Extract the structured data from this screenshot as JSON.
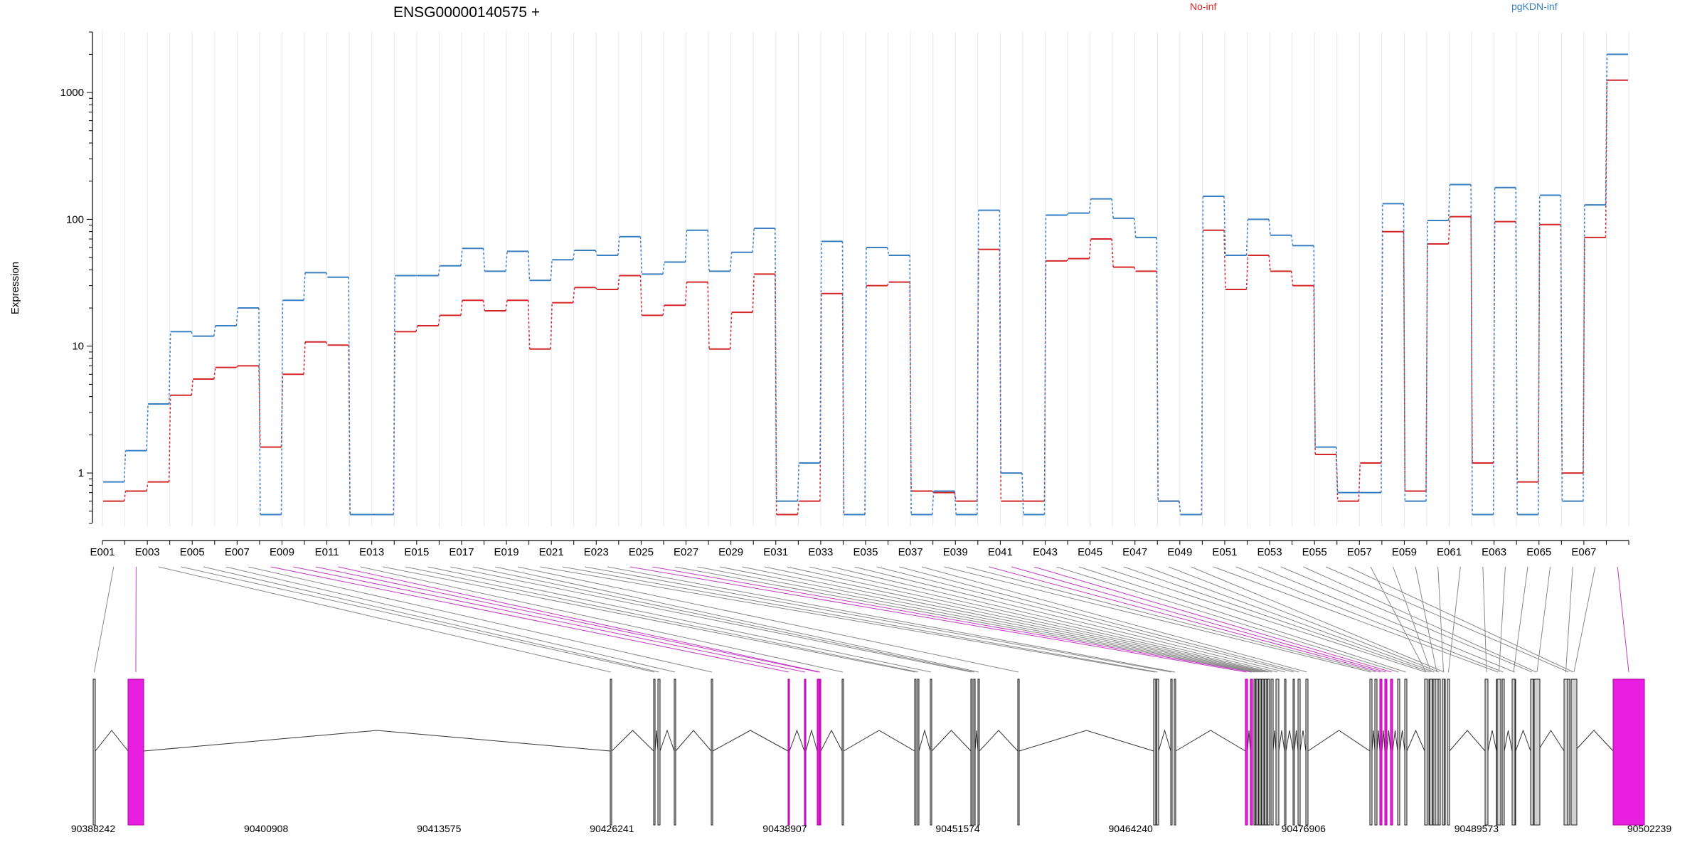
{
  "chart_data": {
    "type": "line",
    "title": "ENSG00000140575 +",
    "xlabel": "",
    "ylabel": "Expression",
    "y_scale": "log",
    "ylim": [
      0.38,
      3000
    ],
    "y_ticks": [
      {
        "value": 1,
        "label": "1"
      },
      {
        "value": 10,
        "label": "10"
      },
      {
        "value": 100,
        "label": "100"
      },
      {
        "value": 1000,
        "label": "1000"
      }
    ],
    "grid": "vertical-only",
    "legend_placement": "top",
    "colors": {
      "No-inf": "#d62728",
      "pgKDN-inf": "#3a7fc1",
      "highlight": "#e81ee0",
      "exon_fill": "#d0d0d0"
    },
    "categories": [
      "E001",
      "E002",
      "E003",
      "E004",
      "E005",
      "E006",
      "E007",
      "E008",
      "E009",
      "E010",
      "E011",
      "E012",
      "E013",
      "E014",
      "E015",
      "E016",
      "E017",
      "E018",
      "E019",
      "E020",
      "E021",
      "E022",
      "E023",
      "E024",
      "E025",
      "E026",
      "E027",
      "E028",
      "E029",
      "E030",
      "E031",
      "E032",
      "E033",
      "E034",
      "E035",
      "E036",
      "E037",
      "E038",
      "E039",
      "E040",
      "E041",
      "E042",
      "E043",
      "E044",
      "E045",
      "E046",
      "E047",
      "E048",
      "E049",
      "E050",
      "E051",
      "E052",
      "E053",
      "E054",
      "E055",
      "E056",
      "E057",
      "E058",
      "E059",
      "E060",
      "E061",
      "E062",
      "E063",
      "E064",
      "E065",
      "E066",
      "E067",
      "E068"
    ],
    "series": [
      {
        "name": "No-inf",
        "color": "#d62728",
        "values": [
          0.6,
          0.72,
          0.85,
          4.1,
          5.5,
          6.8,
          7.0,
          1.6,
          6.0,
          10.8,
          10.2,
          0.47,
          0.47,
          13.0,
          14.5,
          17.5,
          23,
          19,
          23,
          9.5,
          22,
          29,
          28,
          36,
          17.5,
          21,
          32,
          9.5,
          18.5,
          37,
          0.47,
          0.6,
          26,
          0.47,
          30,
          32,
          0.72,
          0.7,
          0.6,
          58,
          0.6,
          0.6,
          47,
          49,
          70,
          42,
          39,
          0.6,
          0.47,
          82,
          28,
          52,
          39,
          30,
          1.4,
          0.6,
          1.2,
          80,
          0.72,
          64,
          105,
          1.2,
          96,
          0.85,
          91,
          1.0,
          72,
          1250
        ]
      },
      {
        "name": "pgKDN-inf",
        "color": "#3a7fc1",
        "values": [
          0.85,
          1.5,
          3.5,
          13.0,
          12.0,
          14.5,
          20,
          0.47,
          23,
          38,
          35,
          0.47,
          0.47,
          36,
          36,
          43,
          59,
          39,
          56,
          33,
          48,
          57,
          52,
          73,
          37,
          46,
          82,
          39,
          55,
          85,
          0.6,
          1.2,
          67,
          0.47,
          60,
          52,
          0.47,
          0.72,
          0.47,
          118,
          1.0,
          0.47,
          108,
          112,
          145,
          102,
          72,
          0.6,
          0.47,
          152,
          52,
          100,
          75,
          62,
          1.6,
          0.7,
          0.7,
          133,
          0.6,
          98,
          188,
          0.47,
          178,
          0.47,
          155,
          0.6,
          130,
          2000
        ]
      }
    ],
    "x_tick_labels": [
      "E001",
      "E003",
      "E005",
      "E007",
      "E009",
      "E011",
      "E013",
      "E015",
      "E017",
      "E019",
      "E021",
      "E023",
      "E025",
      "E027",
      "E029",
      "E031",
      "E033",
      "E035",
      "E037",
      "E039",
      "E041",
      "E043",
      "E045",
      "E047",
      "E049",
      "E051",
      "E053",
      "E055",
      "E057",
      "E059",
      "E061",
      "E063",
      "E065",
      "E067"
    ],
    "gene_model": {
      "coordinate_labels": [
        "90388242",
        "90400908",
        "90413575",
        "90426241",
        "90438907",
        "90451574",
        "90464240",
        "90476906",
        "90489573",
        "90502239"
      ],
      "highlighted_exons": [
        "E002",
        "E008",
        "E009",
        "E010",
        "E011",
        "E024",
        "E025",
        "E040",
        "E041",
        "E042",
        "E068"
      ]
    }
  }
}
